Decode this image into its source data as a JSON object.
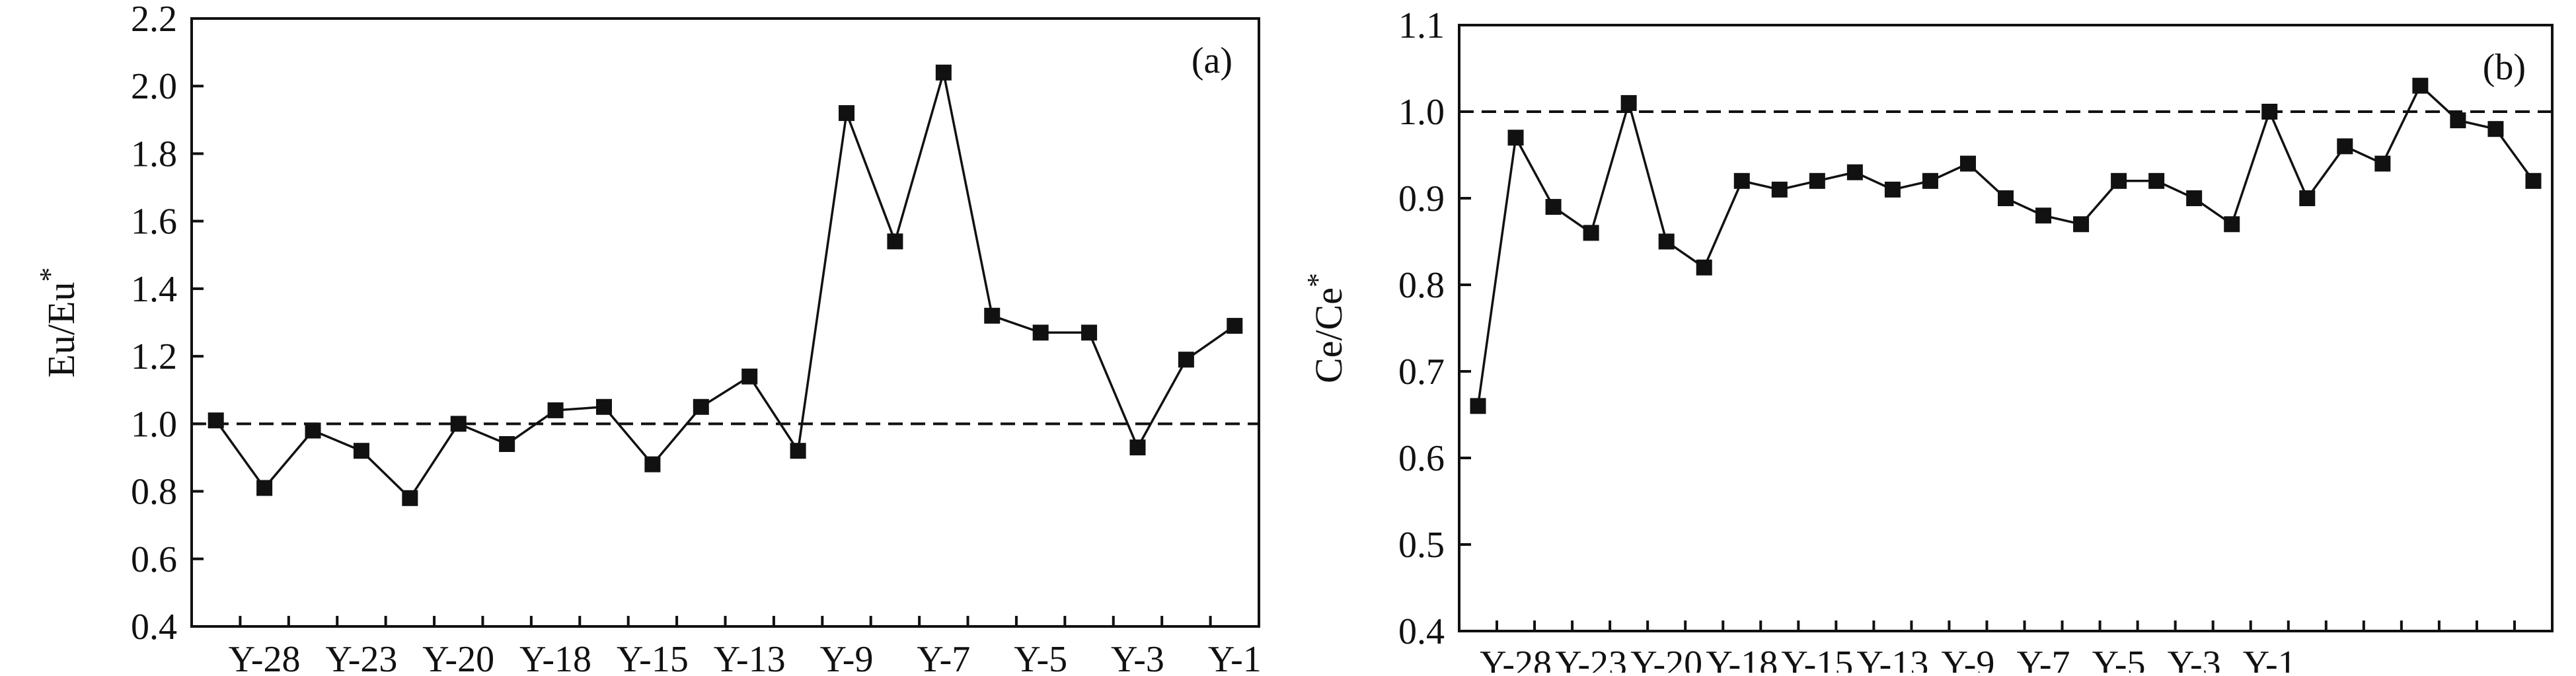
{
  "chart_data": [
    {
      "type": "line",
      "panel_label": "(a)",
      "ylabel": "Eu/Eu",
      "ylabel_sup": "*",
      "ylim": [
        0.4,
        2.2
      ],
      "yticks": [
        "0.4",
        "0.6",
        "0.8",
        "1.0",
        "1.2",
        "1.4",
        "1.6",
        "1.8",
        "2.0",
        "2.2"
      ],
      "xtick_labels": [
        {
          "label": "Y-28",
          "index": 1
        },
        {
          "label": "Y-23",
          "index": 3
        },
        {
          "label": "Y-20",
          "index": 5
        },
        {
          "label": "Y-18",
          "index": 7
        },
        {
          "label": "Y-15",
          "index": 9
        },
        {
          "label": "Y-13",
          "index": 11
        },
        {
          "label": "Y-9",
          "index": 13
        },
        {
          "label": "Y-7",
          "index": 15
        },
        {
          "label": "Y-5",
          "index": 17
        },
        {
          "label": "Y-3",
          "index": 19
        },
        {
          "label": "Y-1",
          "index": 21
        }
      ],
      "reference_line": 1.0,
      "values": [
        1.01,
        0.81,
        0.98,
        0.92,
        0.78,
        1.0,
        0.94,
        1.04,
        1.05,
        0.88,
        1.05,
        1.14,
        0.92,
        1.92,
        1.54,
        2.04,
        1.32,
        1.27,
        1.27,
        0.93,
        1.19,
        1.29
      ]
    },
    {
      "type": "line",
      "panel_label": "(b)",
      "ylabel": "Ce/Ce",
      "ylabel_sup": "*",
      "ylim": [
        0.4,
        1.1
      ],
      "yticks": [
        "0.4",
        "0.5",
        "0.6",
        "0.7",
        "0.8",
        "0.9",
        "1.0",
        "1.1"
      ],
      "xtick_labels": [
        {
          "label": "Y-28",
          "index": 1
        },
        {
          "label": "Y-23",
          "index": 3
        },
        {
          "label": "Y-20",
          "index": 5
        },
        {
          "label": "Y-18",
          "index": 7
        },
        {
          "label": "Y-15",
          "index": 9
        },
        {
          "label": "Y-13",
          "index": 11
        },
        {
          "label": "Y-9",
          "index": 13
        },
        {
          "label": "Y-7",
          "index": 15
        },
        {
          "label": "Y-5",
          "index": 17
        },
        {
          "label": "Y-3",
          "index": 19
        },
        {
          "label": "Y-1",
          "index": 21
        }
      ],
      "reference_line": 1.0,
      "values": [
        0.66,
        0.97,
        0.89,
        0.86,
        1.01,
        0.85,
        0.82,
        0.92,
        0.91,
        0.92,
        0.93,
        0.91,
        0.92,
        0.94,
        0.9,
        0.88,
        0.87,
        0.92,
        0.92,
        0.9,
        0.87,
        1.0,
        0.9,
        0.96,
        0.94,
        1.03,
        0.99,
        0.98,
        0.92
      ]
    }
  ]
}
